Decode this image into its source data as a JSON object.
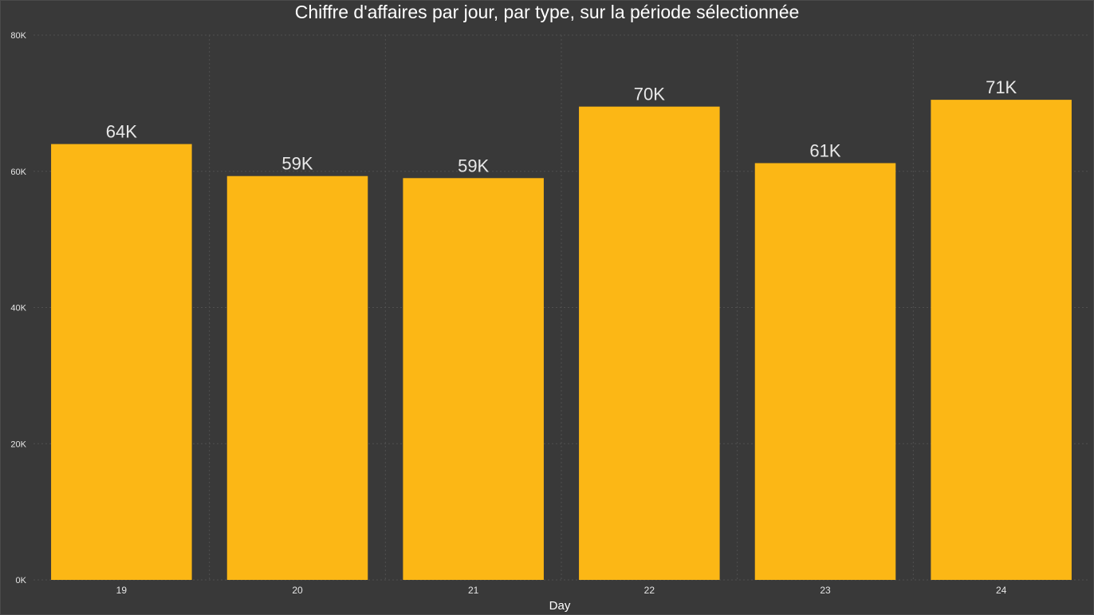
{
  "colors": {
    "background": "#393939",
    "bar": "#fcb715",
    "text": "#ffffff",
    "tick": "#e6e6e6",
    "data_label": "#e8e8e8",
    "grid": "#505050"
  },
  "chart_data": {
    "type": "bar",
    "title": "Chiffre d'affaires par jour, par type, sur la période sélectionnée",
    "xlabel": "Day",
    "ylabel": "",
    "categories": [
      "19",
      "20",
      "21",
      "22",
      "23",
      "24"
    ],
    "values": [
      64000,
      59300,
      59000,
      69500,
      61200,
      70500
    ],
    "data_labels": [
      "64K",
      "59K",
      "59K",
      "70K",
      "61K",
      "71K"
    ],
    "ylim": [
      0,
      80000
    ],
    "yticks": [
      0,
      20000,
      40000,
      60000,
      80000
    ],
    "ytick_labels": [
      "0K",
      "20K",
      "40K",
      "60K",
      "80K"
    ],
    "grid": true,
    "legend": "none"
  }
}
